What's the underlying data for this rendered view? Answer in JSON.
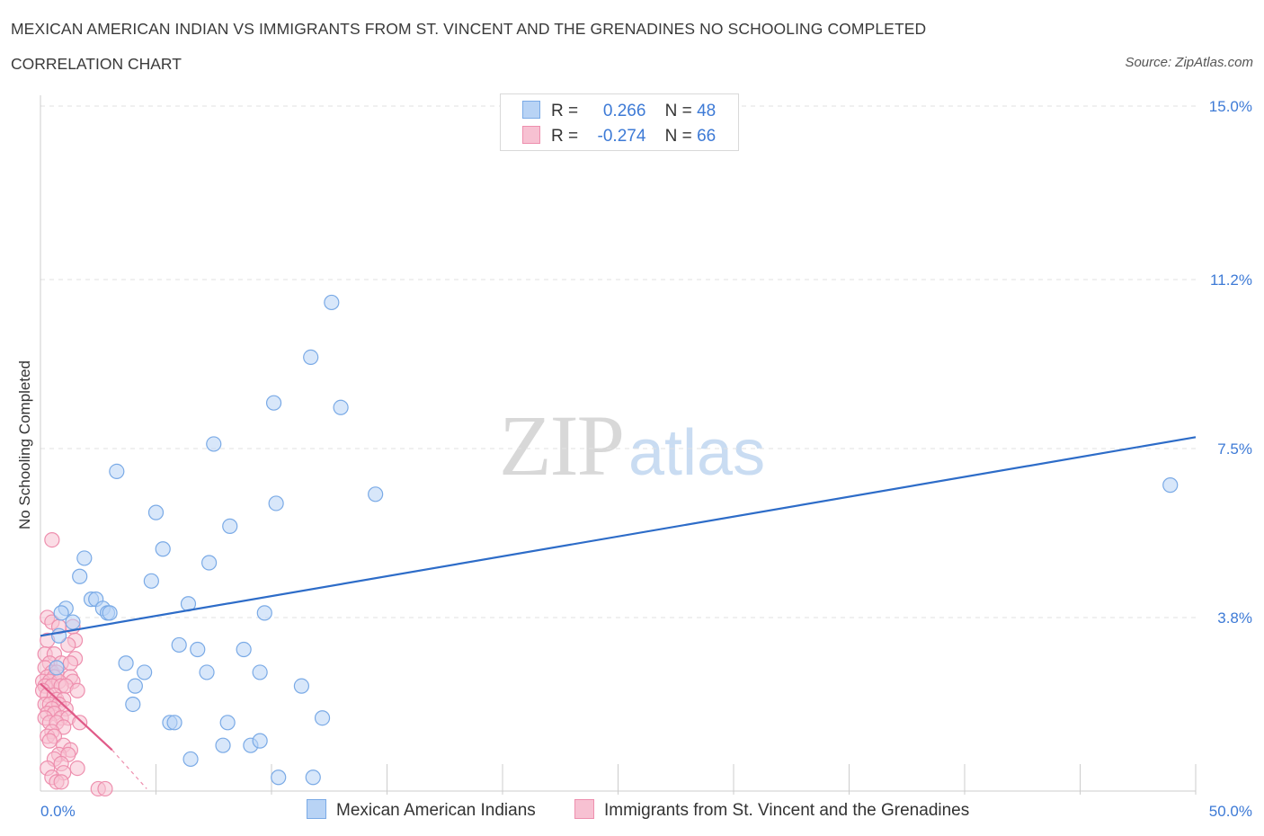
{
  "header": {
    "title": "MEXICAN AMERICAN INDIAN VS IMMIGRANTS FROM ST. VINCENT AND THE GRENADINES NO SCHOOLING COMPLETED",
    "subtitle": "CORRELATION CHART",
    "source": "Source: ZipAtlas.com"
  },
  "watermark": {
    "zip": "ZIP",
    "atlas": "atlas"
  },
  "legend": {
    "rows": [
      {
        "r_label": "R =",
        "r_value": "0.266",
        "n_label": "N =",
        "n_value": "48"
      },
      {
        "r_label": "R =",
        "r_value": "-0.274",
        "n_label": "N =",
        "n_value": "66"
      }
    ]
  },
  "colors": {
    "blue_fill": "#b8d3f5",
    "blue_stroke": "#7aaae6",
    "blue_line": "#2d6cc8",
    "pink_fill": "#f7c1d2",
    "pink_stroke": "#ee8fae",
    "pink_line": "#e05a88",
    "axis_text": "#3d7ad6",
    "grid": "#e2e2e2"
  },
  "chart_data": {
    "type": "scatter",
    "title": "MEXICAN AMERICAN INDIAN VS IMMIGRANTS FROM ST. VINCENT AND THE GRENADINES NO SCHOOLING COMPLETED",
    "xlabel": "",
    "ylabel": "No Schooling Completed",
    "xlim": [
      0,
      50
    ],
    "ylim": [
      0,
      15
    ],
    "x_tick_labels": [
      "0.0%",
      "50.0%"
    ],
    "y_ticks": [
      3.8,
      7.5,
      11.2,
      15.0
    ],
    "y_tick_labels": [
      "3.8%",
      "7.5%",
      "11.2%",
      "15.0%"
    ],
    "grid": true,
    "legend_position": "top-center",
    "series": [
      {
        "name": "Mexican American Indians",
        "color": "#b8d3f5",
        "trend": {
          "x": [
            0,
            50
          ],
          "y": [
            3.4,
            7.75
          ]
        },
        "points": [
          [
            12.6,
            10.7
          ],
          [
            11.7,
            9.5
          ],
          [
            10.1,
            8.5
          ],
          [
            13.0,
            8.4
          ],
          [
            7.5,
            7.6
          ],
          [
            3.3,
            7.0
          ],
          [
            14.5,
            6.5
          ],
          [
            48.9,
            6.7
          ],
          [
            10.2,
            6.3
          ],
          [
            5.0,
            6.1
          ],
          [
            8.2,
            5.8
          ],
          [
            5.3,
            5.3
          ],
          [
            1.9,
            5.1
          ],
          [
            7.3,
            5.0
          ],
          [
            1.7,
            4.7
          ],
          [
            4.8,
            4.6
          ],
          [
            2.2,
            4.2
          ],
          [
            2.4,
            4.2
          ],
          [
            6.4,
            4.1
          ],
          [
            1.1,
            4.0
          ],
          [
            2.7,
            4.0
          ],
          [
            0.9,
            3.9
          ],
          [
            2.9,
            3.9
          ],
          [
            3.0,
            3.9
          ],
          [
            9.7,
            3.9
          ],
          [
            1.4,
            3.7
          ],
          [
            0.8,
            3.4
          ],
          [
            6.0,
            3.2
          ],
          [
            6.8,
            3.1
          ],
          [
            8.8,
            3.1
          ],
          [
            3.7,
            2.8
          ],
          [
            0.7,
            2.7
          ],
          [
            7.2,
            2.6
          ],
          [
            4.5,
            2.6
          ],
          [
            9.5,
            2.6
          ],
          [
            4.1,
            2.3
          ],
          [
            11.3,
            2.3
          ],
          [
            4.0,
            1.9
          ],
          [
            12.2,
            1.6
          ],
          [
            5.6,
            1.5
          ],
          [
            5.8,
            1.5
          ],
          [
            8.1,
            1.5
          ],
          [
            7.9,
            1.0
          ],
          [
            9.1,
            1.0
          ],
          [
            9.5,
            1.1
          ],
          [
            6.5,
            0.7
          ],
          [
            11.8,
            0.3
          ],
          [
            10.3,
            0.3
          ]
        ]
      },
      {
        "name": "Immigrants from St. Vincent and the Grenadines",
        "color": "#f7c1d2",
        "trend": {
          "x": [
            0,
            3.1
          ],
          "y": [
            2.35,
            0.9
          ]
        },
        "trend_dashed": {
          "x": [
            3.1,
            4.6
          ],
          "y": [
            0.9,
            0.05
          ]
        },
        "points": [
          [
            0.5,
            5.5
          ],
          [
            0.3,
            3.8
          ],
          [
            0.5,
            3.7
          ],
          [
            0.8,
            3.6
          ],
          [
            1.4,
            3.6
          ],
          [
            0.3,
            3.3
          ],
          [
            1.5,
            3.3
          ],
          [
            1.2,
            3.2
          ],
          [
            0.2,
            3.0
          ],
          [
            0.6,
            3.0
          ],
          [
            1.5,
            2.9
          ],
          [
            0.4,
            2.8
          ],
          [
            0.9,
            2.8
          ],
          [
            1.3,
            2.8
          ],
          [
            0.2,
            2.7
          ],
          [
            0.5,
            2.6
          ],
          [
            0.7,
            2.6
          ],
          [
            0.3,
            2.5
          ],
          [
            0.6,
            2.5
          ],
          [
            1.3,
            2.5
          ],
          [
            0.1,
            2.4
          ],
          [
            0.4,
            2.4
          ],
          [
            0.8,
            2.4
          ],
          [
            1.4,
            2.4
          ],
          [
            0.2,
            2.3
          ],
          [
            0.5,
            2.3
          ],
          [
            0.9,
            2.3
          ],
          [
            1.1,
            2.3
          ],
          [
            1.6,
            2.2
          ],
          [
            0.1,
            2.2
          ],
          [
            0.3,
            2.1
          ],
          [
            0.6,
            2.1
          ],
          [
            0.7,
            2.0
          ],
          [
            1.0,
            2.0
          ],
          [
            0.2,
            1.9
          ],
          [
            0.4,
            1.9
          ],
          [
            0.8,
            1.9
          ],
          [
            0.5,
            1.8
          ],
          [
            1.1,
            1.8
          ],
          [
            0.3,
            1.7
          ],
          [
            0.6,
            1.7
          ],
          [
            0.2,
            1.6
          ],
          [
            0.9,
            1.6
          ],
          [
            1.2,
            1.6
          ],
          [
            0.4,
            1.5
          ],
          [
            0.7,
            1.5
          ],
          [
            1.7,
            1.5
          ],
          [
            1.0,
            1.4
          ],
          [
            0.5,
            1.3
          ],
          [
            0.3,
            1.2
          ],
          [
            0.6,
            1.2
          ],
          [
            0.4,
            1.1
          ],
          [
            1.0,
            1.0
          ],
          [
            1.3,
            0.9
          ],
          [
            0.8,
            0.8
          ],
          [
            1.2,
            0.8
          ],
          [
            0.6,
            0.7
          ],
          [
            0.9,
            0.6
          ],
          [
            0.3,
            0.5
          ],
          [
            1.6,
            0.5
          ],
          [
            1.0,
            0.4
          ],
          [
            0.5,
            0.3
          ],
          [
            0.7,
            0.2
          ],
          [
            0.9,
            0.2
          ],
          [
            2.5,
            0.05
          ],
          [
            2.8,
            0.05
          ]
        ]
      }
    ]
  }
}
